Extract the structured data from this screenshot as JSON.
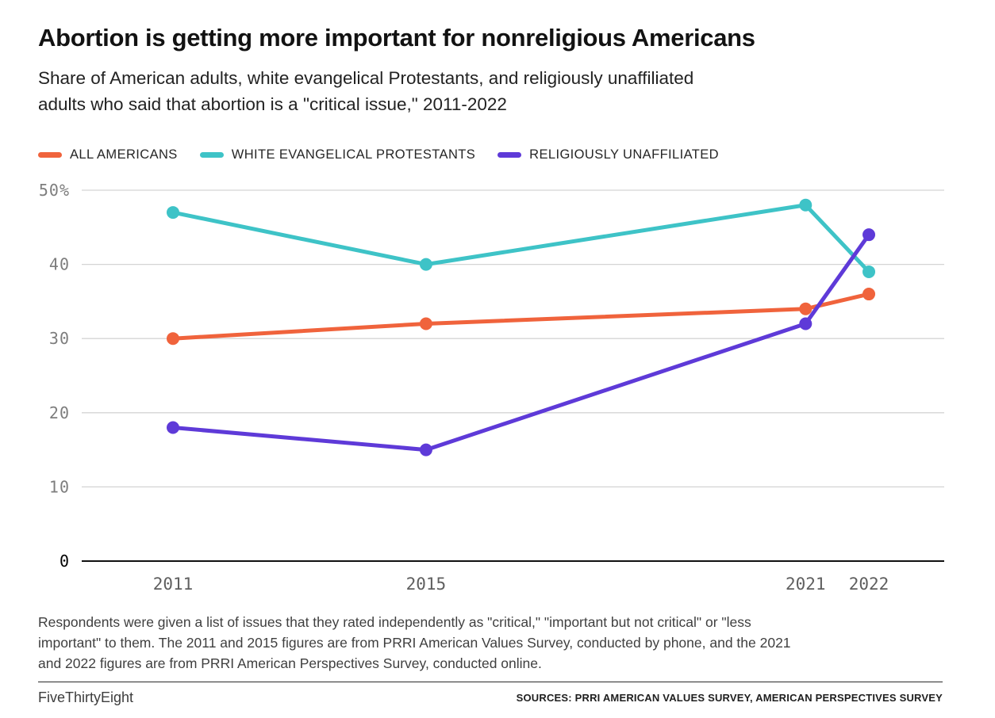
{
  "header": {
    "title": "Abortion is getting more important for nonreligious Americans",
    "subtitle": "Share of American adults, white evangelical Protestants, and religiously unaffiliated\nadults who said that abortion is a \"critical issue,\" 2011-2022"
  },
  "chart_data": {
    "type": "line",
    "x": [
      2011,
      2015,
      2021,
      2022
    ],
    "x_tick_labels": [
      "2011",
      "2015",
      "2021",
      "2022"
    ],
    "series": [
      {
        "name": "ALL AMERICANS",
        "color": "#f0633c",
        "values": [
          30,
          32,
          34,
          36
        ]
      },
      {
        "name": "WHITE EVANGELICAL PROTESTANTS",
        "color": "#3ec3c7",
        "values": [
          47,
          40,
          48,
          39
        ]
      },
      {
        "name": "RELIGIOUSLY UNAFFILIATED",
        "color": "#5e3ad8",
        "values": [
          18,
          15,
          32,
          44
        ]
      }
    ],
    "ylim": [
      0,
      50
    ],
    "yticks": [
      0,
      10,
      20,
      30,
      40,
      50
    ],
    "ytick_labels": [
      "0",
      "10",
      "20",
      "30",
      "40",
      "50%"
    ],
    "grid": true,
    "legend_position": "top",
    "colors": {
      "gridline": "#d4d4d4",
      "zero_line": "#111111"
    }
  },
  "footnote": "Respondents were given a list of issues that they rated independently as \"critical,\" \"important but not critical\" or \"less\nimportant\" to them. The 2011 and 2015 figures are from PRRI American Values Survey, conducted by phone, and the 2021\nand 2022 figures are from PRRI American Perspectives Survey, conducted online.",
  "footer": {
    "brand": "FiveThirtyEight",
    "sources": "SOURCES: PRRI AMERICAN VALUES SURVEY, AMERICAN PERSPECTIVES SURVEY"
  }
}
